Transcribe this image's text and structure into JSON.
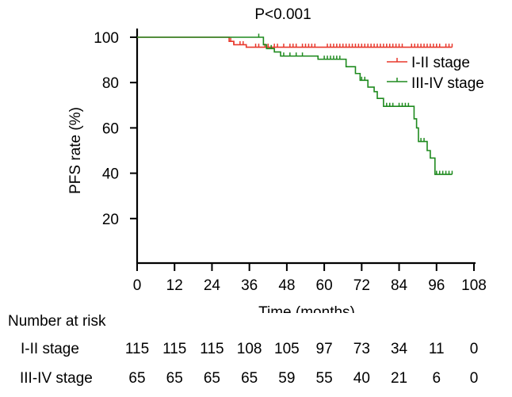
{
  "chart_data": {
    "type": "line",
    "title": "P<0.001",
    "xlabel": "Time (months)",
    "ylabel": "PFS rate (%)",
    "xlim": [
      0,
      108
    ],
    "ylim": [
      0,
      100
    ],
    "x_ticks": [
      0,
      12,
      24,
      36,
      48,
      60,
      72,
      84,
      96,
      108
    ],
    "y_ticks": [
      20,
      40,
      60,
      80,
      100
    ],
    "legend_position": "top-right",
    "series": [
      {
        "name": "I-II stage",
        "color": "#e8382c",
        "steps": [
          [
            0,
            100
          ],
          [
            29,
            100
          ],
          [
            29.5,
            98.2
          ],
          [
            31,
            96.7
          ],
          [
            35,
            95.6
          ],
          [
            101,
            95.6
          ]
        ],
        "censors": [
          30,
          31,
          33,
          34,
          38,
          39,
          41,
          42,
          44,
          45,
          47,
          49,
          50,
          51,
          53,
          54,
          55,
          56,
          57,
          61,
          62,
          63,
          64,
          65,
          66,
          67,
          68,
          69,
          70,
          71,
          72,
          73,
          74,
          75,
          76,
          77,
          78,
          79,
          80,
          81,
          82,
          83,
          84,
          85,
          88,
          89,
          90,
          91,
          92,
          93,
          94,
          95,
          96,
          97,
          99,
          100,
          101
        ]
      },
      {
        "name": "III-IV stage",
        "color": "#1e8a1e",
        "steps": [
          [
            0,
            100
          ],
          [
            40,
            100
          ],
          [
            40.5,
            96.7
          ],
          [
            41.5,
            95
          ],
          [
            44,
            93.5
          ],
          [
            46,
            91.7
          ],
          [
            57,
            91.7
          ],
          [
            58,
            90.3
          ],
          [
            66,
            90.3
          ],
          [
            67,
            87
          ],
          [
            70,
            84
          ],
          [
            71.5,
            81
          ],
          [
            74,
            78
          ],
          [
            76,
            76
          ],
          [
            77,
            73
          ],
          [
            79,
            69.5
          ],
          [
            88,
            69.5
          ],
          [
            88.8,
            64
          ],
          [
            89.6,
            60
          ],
          [
            90.2,
            54
          ],
          [
            93,
            50
          ],
          [
            94,
            46.7
          ],
          [
            95.5,
            39.5
          ],
          [
            101,
            39.5
          ]
        ],
        "censors": [
          39,
          43,
          47,
          49,
          51,
          53,
          58,
          60,
          61,
          62,
          63,
          64,
          65,
          72,
          73,
          80,
          81,
          82,
          84,
          85,
          86,
          87,
          91,
          92,
          96,
          97,
          98,
          99,
          100,
          101
        ]
      }
    ],
    "risk_table": {
      "title": "Number at risk",
      "time_points": [
        0,
        12,
        24,
        36,
        48,
        60,
        72,
        84,
        96,
        108
      ],
      "rows": [
        {
          "name": "I-II stage",
          "values": [
            "115",
            "115",
            "115",
            "108",
            "105",
            "97",
            "73",
            "34",
            "11",
            "0"
          ]
        },
        {
          "name": "III-IV stage",
          "values": [
            "65",
            "65",
            "65",
            "65",
            "59",
            "55",
            "40",
            "21",
            "6",
            "0"
          ]
        }
      ]
    }
  }
}
